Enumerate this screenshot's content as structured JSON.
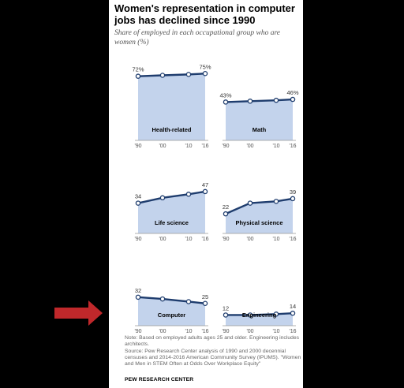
{
  "title": "Women's representation in computer jobs has declined since 1990",
  "subtitle": "Share of employed in each occupational group who are women (%)",
  "note": "Note: Based on employed adults ages 25 and older. Engineering includes architects.",
  "source": "Source: Pew Research Center analysis of 1990 and 2000 decennial censuses and 2014-2016 American Community Survey (IPUMS). \"Women and Men in STEM Often at Odds Over Workplace Equity\"",
  "footer": "PEW RESEARCH CENTER",
  "colors": {
    "line": "#1f3d6e",
    "fill": "#c3d3ec",
    "arrow": "#c0282b",
    "background": "#000000"
  },
  "arrow_icon": "right-arrow-icon",
  "chart_data": [
    {
      "type": "area",
      "title": "Health-related",
      "x": [
        "'90",
        "'00",
        "'10",
        "'16"
      ],
      "values": [
        72,
        73,
        74,
        75
      ],
      "labels": [
        "72%",
        "",
        "",
        "75%"
      ],
      "ylim": [
        0,
        100
      ]
    },
    {
      "type": "area",
      "title": "Math",
      "x": [
        "'90",
        "'00",
        "'10",
        "'16"
      ],
      "values": [
        43,
        44,
        45,
        46
      ],
      "labels": [
        "43%",
        "",
        "",
        "46%"
      ],
      "ylim": [
        0,
        100
      ]
    },
    {
      "type": "line",
      "title": "Life science",
      "x": [
        "'90",
        "'00",
        "'10",
        "'16"
      ],
      "values": [
        34,
        40,
        44,
        47
      ],
      "labels": [
        "34",
        "",
        "",
        "47"
      ],
      "ylim": [
        0,
        100
      ]
    },
    {
      "type": "line",
      "title": "Physical science",
      "x": [
        "'90",
        "'00",
        "'10",
        "'16"
      ],
      "values": [
        22,
        34,
        36,
        39
      ],
      "labels": [
        "22",
        "",
        "",
        "39"
      ],
      "ylim": [
        0,
        100
      ]
    },
    {
      "type": "line",
      "title": "Computer",
      "x": [
        "'90",
        "'00",
        "'10",
        "'16"
      ],
      "values": [
        32,
        30,
        27,
        25
      ],
      "labels": [
        "32",
        "",
        "",
        "25"
      ],
      "ylim": [
        0,
        100
      ]
    },
    {
      "type": "line",
      "title": "Engineering",
      "x": [
        "'90",
        "'00",
        "'10",
        "'16"
      ],
      "values": [
        12,
        12,
        13,
        14
      ],
      "labels": [
        "12",
        "",
        "",
        "14"
      ],
      "ylim": [
        0,
        100
      ]
    }
  ]
}
